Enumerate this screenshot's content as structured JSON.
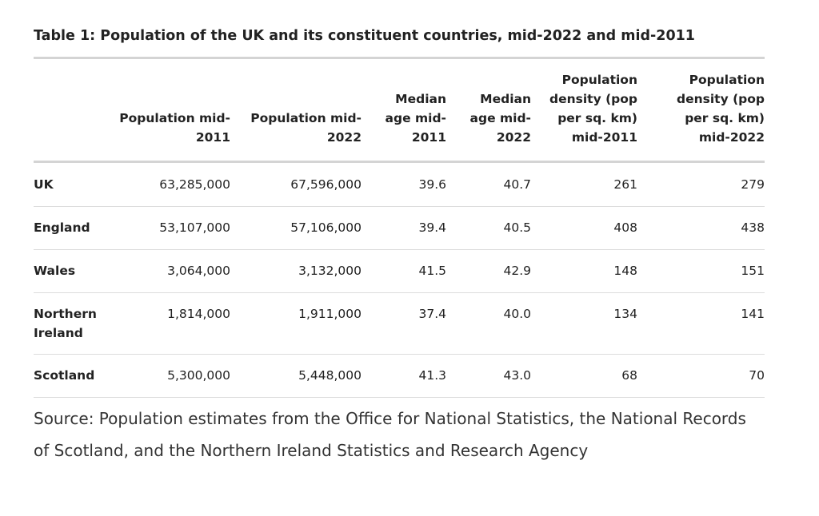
{
  "title": "Table 1: Population of the UK and its constituent countries, mid-2022 and mid-2011",
  "table": {
    "columns": [
      "",
      "Population mid-2011",
      "Population mid-2022",
      "Median age mid-2011",
      "Median age mid-2022",
      "Population density (pop per sq. km) mid-2011",
      "Population density (pop per sq. km) mid-2022"
    ],
    "rows": [
      {
        "name": "UK",
        "values": [
          "63,285,000",
          "67,596,000",
          "39.6",
          "40.7",
          "261",
          "279"
        ]
      },
      {
        "name": "England",
        "values": [
          "53,107,000",
          "57,106,000",
          "39.4",
          "40.5",
          "408",
          "438"
        ]
      },
      {
        "name": "Wales",
        "values": [
          "3,064,000",
          "3,132,000",
          "41.5",
          "42.9",
          "148",
          "151"
        ]
      },
      {
        "name": "Northern Ireland",
        "values": [
          "1,814,000",
          "1,911,000",
          "37.4",
          "40.0",
          "134",
          "141"
        ]
      },
      {
        "name": "Scotland",
        "values": [
          "5,300,000",
          "5,448,000",
          "41.3",
          "43.0",
          "68",
          "70"
        ]
      }
    ]
  },
  "source": "Source: Population estimates from the Office for National Statistics, the National Records of Scotland, and the Northern Ireland Statistics and Research Agency"
}
